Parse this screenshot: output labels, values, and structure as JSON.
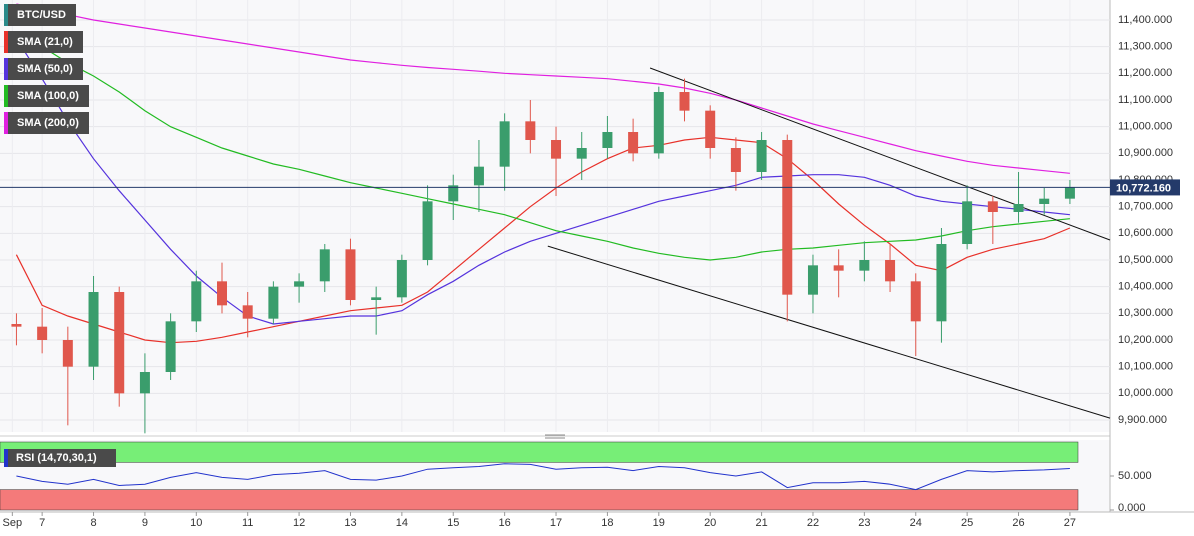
{
  "chart_data": [
    {
      "type": "candlestick",
      "title": "BTC/USD",
      "title_color": "#2a8a8a",
      "x": [
        6.5,
        7,
        7.5,
        8,
        8.5,
        9,
        9.5,
        10,
        10.5,
        11,
        11.5,
        12,
        12.5,
        13,
        13.5,
        14,
        14.5,
        15,
        15.5,
        16,
        16.5,
        17,
        17.5,
        18,
        18.5,
        19,
        19.5,
        20,
        20.5,
        21,
        21.5,
        22,
        22.5,
        23,
        23.5,
        24,
        24.5,
        25,
        25.5,
        26,
        26.5,
        27
      ],
      "open": [
        10260,
        10250,
        10200,
        10100,
        10380,
        10000,
        10080,
        10270,
        10420,
        10330,
        10280,
        10400,
        10420,
        10540,
        10350,
        10360,
        10500,
        10720,
        10780,
        10850,
        11020,
        10950,
        10880,
        10920,
        10980,
        10900,
        11130,
        11060,
        10920,
        10830,
        10950,
        10370,
        10480,
        10460,
        10500,
        10420,
        10270,
        10560,
        10720,
        10680,
        10710,
        10730
      ],
      "high": [
        10300,
        10320,
        10250,
        10440,
        10400,
        10150,
        10300,
        10460,
        10490,
        10380,
        10420,
        10450,
        10560,
        10580,
        10400,
        10520,
        10780,
        10820,
        10950,
        11050,
        11100,
        11000,
        10980,
        11040,
        11030,
        11150,
        11180,
        11080,
        10960,
        10980,
        10970,
        10520,
        10540,
        10570,
        10560,
        10450,
        10620,
        10780,
        10740,
        10830,
        10770,
        10800
      ],
      "low": [
        10180,
        10150,
        9880,
        10050,
        9950,
        9850,
        10050,
        10230,
        10300,
        10210,
        10260,
        10340,
        10380,
        10330,
        10220,
        10340,
        10480,
        10650,
        10680,
        10760,
        10900,
        10740,
        10800,
        10880,
        10870,
        10880,
        11020,
        10880,
        10760,
        10800,
        10270,
        10300,
        10360,
        10420,
        10380,
        10140,
        10190,
        10540,
        10560,
        10640,
        10670,
        10710
      ],
      "close": [
        10250,
        10200,
        10100,
        10380,
        10000,
        10080,
        10270,
        10420,
        10330,
        10280,
        10400,
        10420,
        10540,
        10350,
        10360,
        10500,
        10720,
        10780,
        10850,
        11020,
        10950,
        10880,
        10920,
        10980,
        10900,
        11130,
        11060,
        10920,
        10830,
        10950,
        10370,
        10480,
        10460,
        10500,
        10420,
        10270,
        10560,
        10720,
        10680,
        10710,
        10730,
        10772.16
      ],
      "last_label": "10,772.160",
      "up_color": "#3a9d6c",
      "down_color": "#e0574c",
      "last_color": "#243a6a",
      "series": [
        {
          "name": "SMA (21,0)",
          "color": "#e8312a",
          "values": [
            10520,
            10330,
            10290,
            10260,
            10230,
            10200,
            10190,
            10195,
            10210,
            10230,
            10250,
            10270,
            10290,
            10310,
            10320,
            10330,
            10380,
            10460,
            10540,
            10620,
            10700,
            10770,
            10830,
            10880,
            10920,
            10930,
            10950,
            10960,
            10950,
            10940,
            10880,
            10800,
            10710,
            10630,
            10560,
            10480,
            10460,
            10510,
            10540,
            10560,
            10580,
            10620
          ]
        },
        {
          "name": "SMA (50,0)",
          "color": "#5533dd",
          "values": [
            11330,
            11180,
            11020,
            10880,
            10760,
            10650,
            10540,
            10440,
            10360,
            10290,
            10260,
            10270,
            10280,
            10290,
            10290,
            10310,
            10370,
            10420,
            10480,
            10530,
            10570,
            10600,
            10630,
            10660,
            10690,
            10720,
            10740,
            10760,
            10780,
            10810,
            10815,
            10820,
            10820,
            10810,
            10780,
            10740,
            10720,
            10710,
            10700,
            10690,
            10680,
            10670
          ]
        },
        {
          "name": "SMA (100,0)",
          "color": "#22bb22",
          "values": [
            11340,
            11300,
            11240,
            11190,
            11130,
            11060,
            11000,
            10960,
            10920,
            10890,
            10860,
            10840,
            10815,
            10790,
            10770,
            10750,
            10730,
            10710,
            10690,
            10670,
            10640,
            10610,
            10590,
            10570,
            10545,
            10525,
            10510,
            10500,
            10510,
            10530,
            10540,
            10545,
            10555,
            10565,
            10570,
            10575,
            10590,
            10610,
            10625,
            10635,
            10645,
            10655
          ]
        },
        {
          "name": "SMA (200,0)",
          "color": "#e020e0",
          "values": [
            11460,
            11440,
            11420,
            11400,
            11385,
            11370,
            11355,
            11340,
            11325,
            11310,
            11295,
            11280,
            11265,
            11250,
            11240,
            11230,
            11222,
            11215,
            11208,
            11200,
            11195,
            11190,
            11185,
            11180,
            11170,
            11160,
            11145,
            11125,
            11100,
            11070,
            11040,
            11010,
            10985,
            10960,
            10935,
            10910,
            10890,
            10870,
            10855,
            10845,
            10835,
            10825
          ]
        }
      ],
      "trendlines": [
        {
          "x": [
            18.83,
            27.78
          ],
          "y": [
            11220,
            10575
          ]
        },
        {
          "x": [
            16.84,
            27.78
          ],
          "y": [
            10552,
            9907
          ]
        }
      ],
      "xlim": [
        6.18,
        27.78
      ],
      "ylim": [
        9855,
        11475
      ],
      "xticks": [
        {
          "value": 6.42,
          "label": "Sep"
        },
        7,
        8,
        9,
        10,
        11,
        12,
        13,
        14,
        15,
        16,
        17,
        18,
        19,
        20,
        21,
        22,
        23,
        24,
        25,
        26,
        27
      ],
      "yticks": [
        {
          "value": 9900,
          "label": "9,900.000"
        },
        {
          "value": 10000,
          "label": "10,000.000"
        },
        {
          "value": 10100,
          "label": "10,100.000"
        },
        {
          "value": 10200,
          "label": "10,200.000"
        },
        {
          "value": 10300,
          "label": "10,300.000"
        },
        {
          "value": 10400,
          "label": "10,400.000"
        },
        {
          "value": 10500,
          "label": "10,500.000"
        },
        {
          "value": 10600,
          "label": "10,600.000"
        },
        {
          "value": 10700,
          "label": "10,700.000"
        },
        {
          "value": 10800,
          "label": "10,800.000"
        },
        {
          "value": 10900,
          "label": "10,900.000"
        },
        {
          "value": 11000,
          "label": "11,000.000"
        },
        {
          "value": 11100,
          "label": "11,100.000"
        },
        {
          "value": 11200,
          "label": "11,200.000"
        },
        {
          "value": 11300,
          "label": "11,300.000"
        },
        {
          "value": 11400,
          "label": "11,400.000"
        }
      ],
      "grid": true
    },
    {
      "type": "line",
      "title": "RSI (14,70,30,1)",
      "color": "#2233cc",
      "values": [
        50,
        42,
        38,
        45,
        36,
        38,
        48,
        55,
        48,
        45,
        52,
        54,
        58,
        45,
        44,
        50,
        60,
        62,
        64,
        68,
        67,
        60,
        62,
        63,
        58,
        64,
        62,
        55,
        50,
        56,
        33,
        40,
        40,
        42,
        38,
        30,
        45,
        58,
        56,
        58,
        59,
        61
      ],
      "upper": 70,
      "lower": 30,
      "upper_color": "#77ee77",
      "lower_color": "#f47a7a",
      "ylim": [
        0,
        100
      ],
      "yticks": [
        {
          "value": 0,
          "label": "0.000"
        },
        {
          "value": 50,
          "label": "50.000"
        }
      ]
    }
  ]
}
